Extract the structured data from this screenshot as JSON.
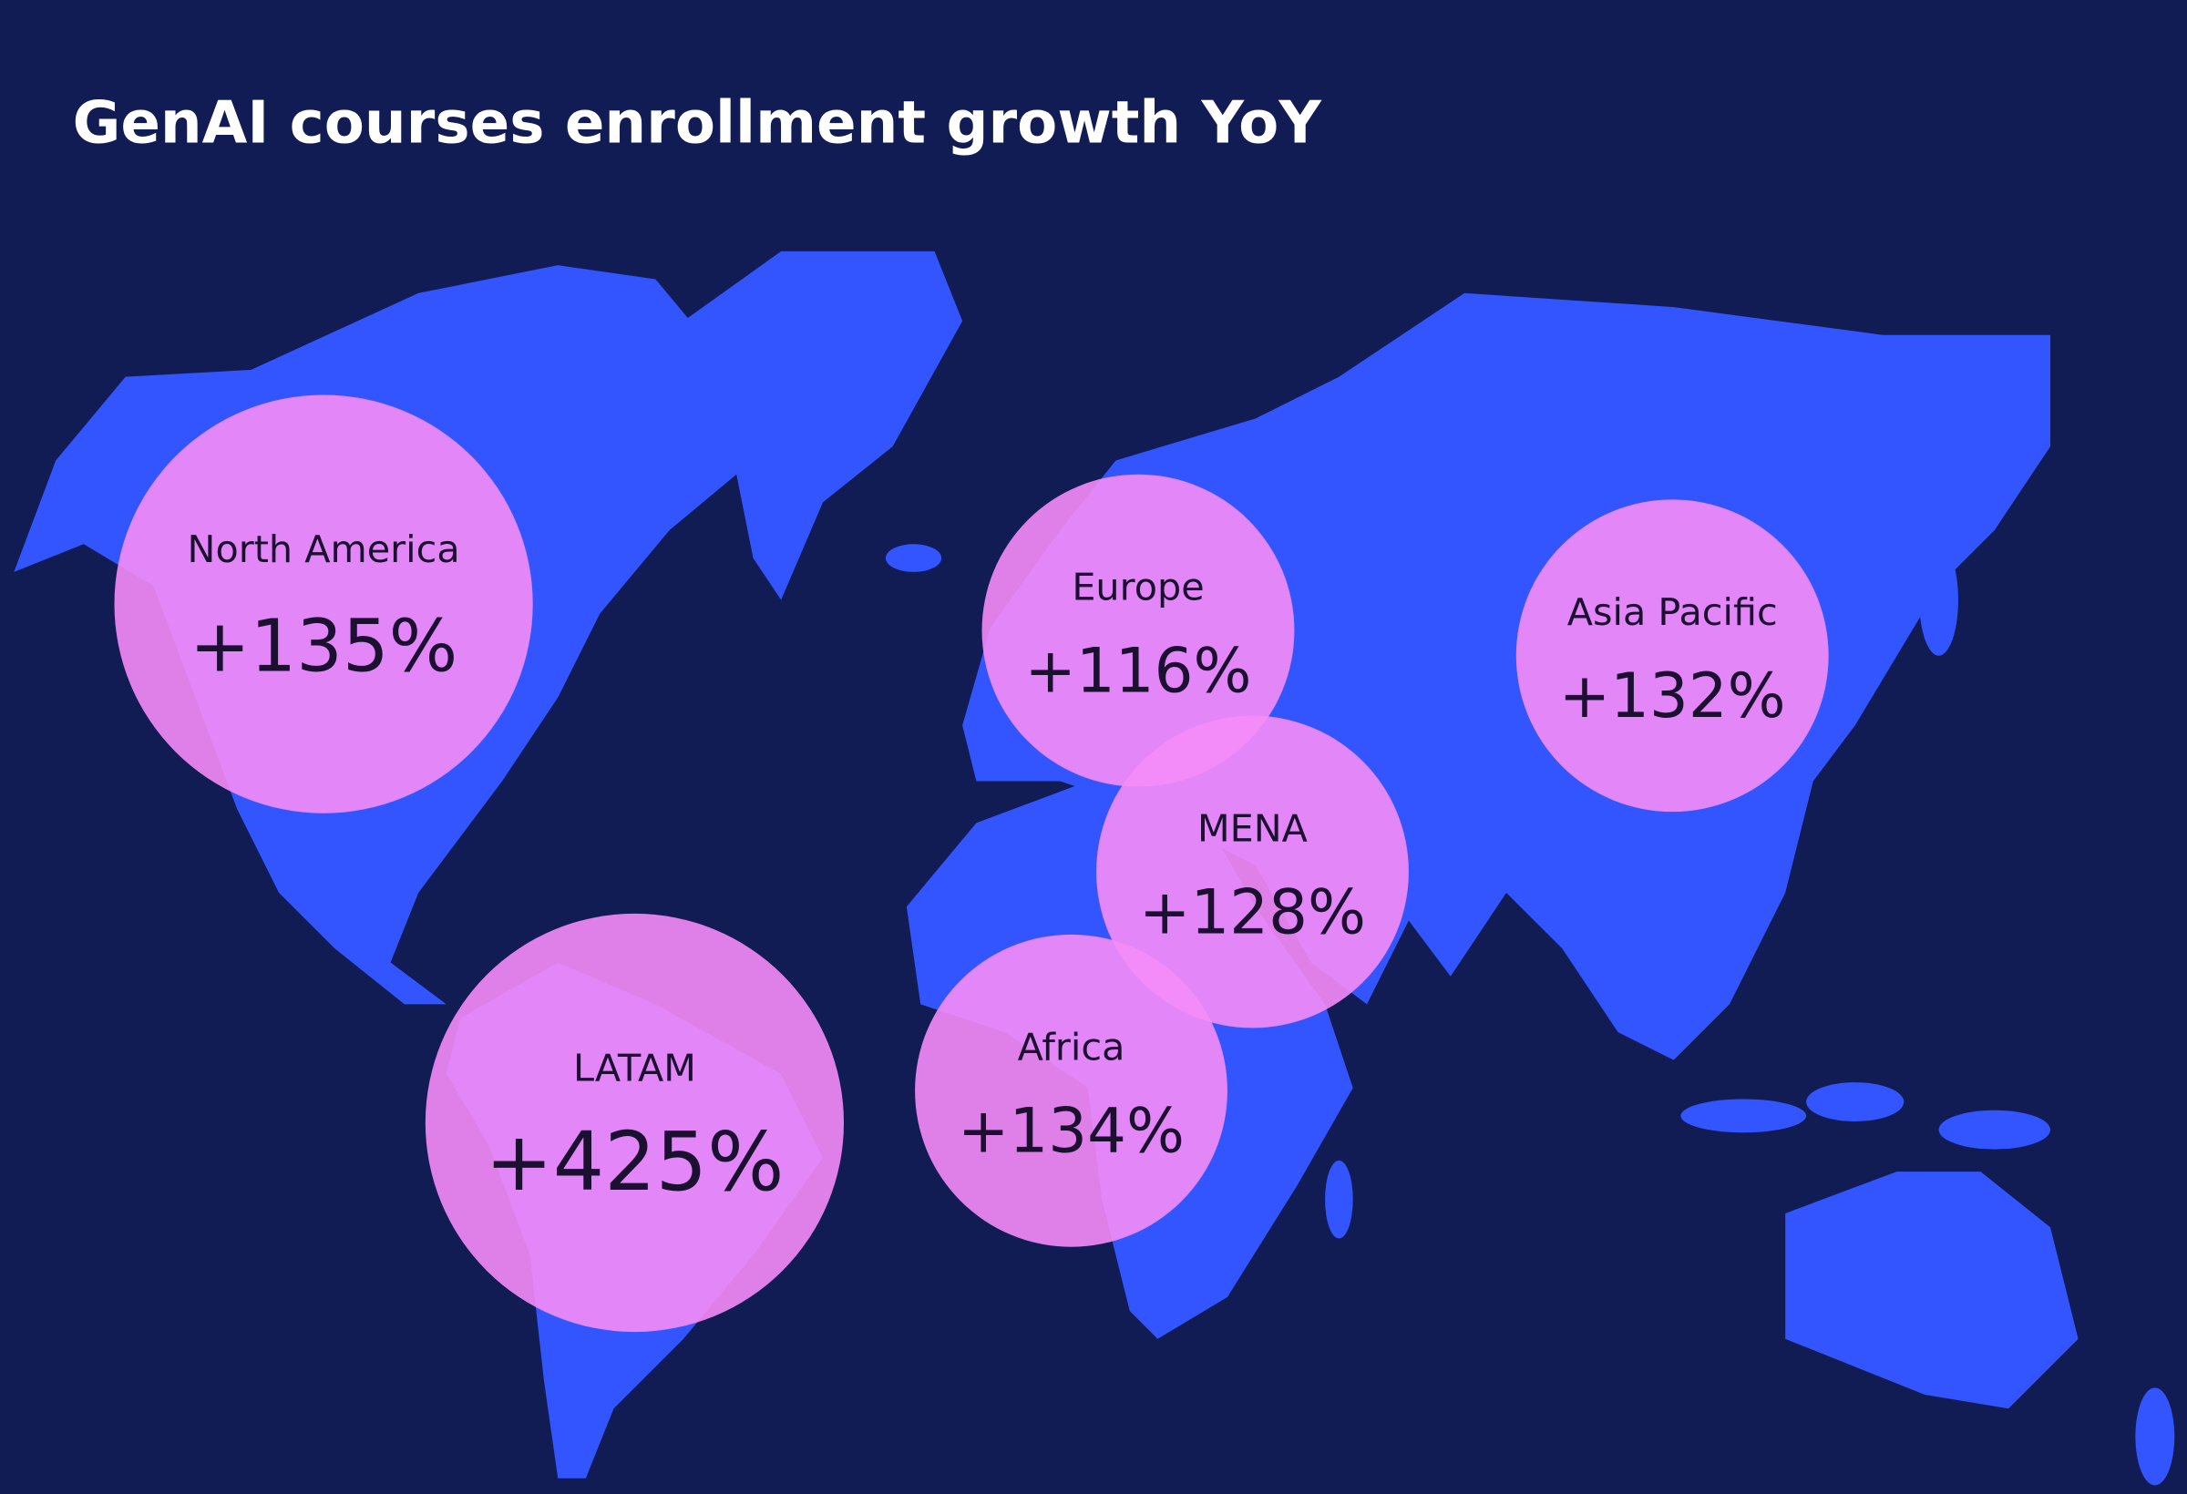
{
  "title": "GenAI courses enrollment growth YoY",
  "regions": [
    {
      "name": "North America",
      "growth": "+135%"
    },
    {
      "name": "Europe",
      "growth": "+116%"
    },
    {
      "name": "Asia Pacific",
      "growth": "+132%"
    },
    {
      "name": "MENA",
      "growth": "+128%"
    },
    {
      "name": "LATAM",
      "growth": "+425%"
    },
    {
      "name": "Africa",
      "growth": "+134%"
    }
  ]
}
